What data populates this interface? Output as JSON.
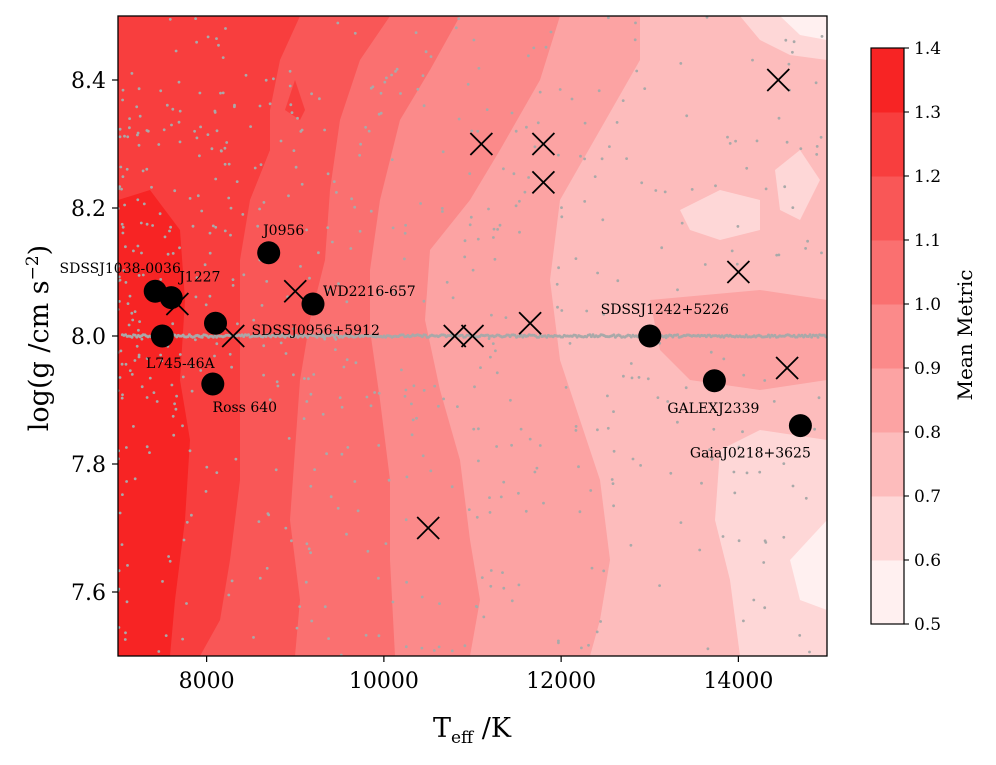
{
  "chart_data": {
    "type": "scatter",
    "xlabel_main": "T",
    "xlabel_sub": "eff",
    "xlabel_unit": " /K",
    "ylabel_main": "log(g /cm s",
    "ylabel_sup": "−2",
    "ylabel_close": ")",
    "xlim": [
      7000,
      15000
    ],
    "ylim": [
      7.5,
      8.5
    ],
    "x_ticks": [
      "8000",
      "10000",
      "12000",
      "14000"
    ],
    "y_ticks": [
      "7.6",
      "7.8",
      "8.0",
      "8.2",
      "8.4"
    ],
    "colorbar": {
      "label": "Mean Metric",
      "ticks": [
        "0.5",
        "0.6",
        "0.7",
        "0.8",
        "0.9",
        "1.0",
        "1.1",
        "1.2",
        "1.3",
        "1.4"
      ],
      "range": [
        0.5,
        1.4
      ],
      "colors": [
        "#fff0f0",
        "#fed7d7",
        "#fdbcbc",
        "#fca3a3",
        "#fb8a8a",
        "#fa7070",
        "#f95757",
        "#f83e3e",
        "#f72424"
      ]
    },
    "background_contour": {
      "description_levels": [
        0.5,
        1.4
      ],
      "contour_colors_low_to_high": [
        "#fff0f0",
        "#fed7d7",
        "#fdbcbc",
        "#fca3a3",
        "#fb8a8a",
        "#fa7070",
        "#f95757",
        "#f83e3e"
      ]
    },
    "labeled_stars": [
      {
        "name": "SDSSJ1038-0036",
        "x": 7420,
        "y": 8.07
      },
      {
        "name": "J1227",
        "x": 7600,
        "y": 8.06
      },
      {
        "name": "L745-46A",
        "x": 7500,
        "y": 8.0
      },
      {
        "name": "J0956",
        "x": 8700,
        "y": 8.13
      },
      {
        "name": "SDSSJ0956+5912",
        "x": 8100,
        "y": 8.02
      },
      {
        "name": "WD2216-657",
        "x": 9200,
        "y": 8.05
      },
      {
        "name": "Ross 640",
        "x": 8070,
        "y": 7.925
      },
      {
        "name": "SDSSJ1242+5226",
        "x": 13000,
        "y": 8.0
      },
      {
        "name": "GALEXJ2339",
        "x": 13730,
        "y": 7.93
      },
      {
        "name": "GaiaJ0218+3625",
        "x": 14700,
        "y": 7.86
      }
    ],
    "cross_markers": [
      {
        "x": 7670,
        "y": 8.05
      },
      {
        "x": 8300,
        "y": 8.0
      },
      {
        "x": 9000,
        "y": 8.07
      },
      {
        "x": 10500,
        "y": 7.7
      },
      {
        "x": 10800,
        "y": 8.0
      },
      {
        "x": 11000,
        "y": 8.0
      },
      {
        "x": 11100,
        "y": 8.3
      },
      {
        "x": 11650,
        "y": 8.02
      },
      {
        "x": 11800,
        "y": 8.3
      },
      {
        "x": 11800,
        "y": 8.24
      },
      {
        "x": 14000,
        "y": 8.1
      },
      {
        "x": 14450,
        "y": 8.4
      },
      {
        "x": 14550,
        "y": 7.95
      }
    ],
    "background_points_color": "#a9a9a9",
    "star_color": "#000000",
    "grid": false,
    "legend": "none"
  }
}
